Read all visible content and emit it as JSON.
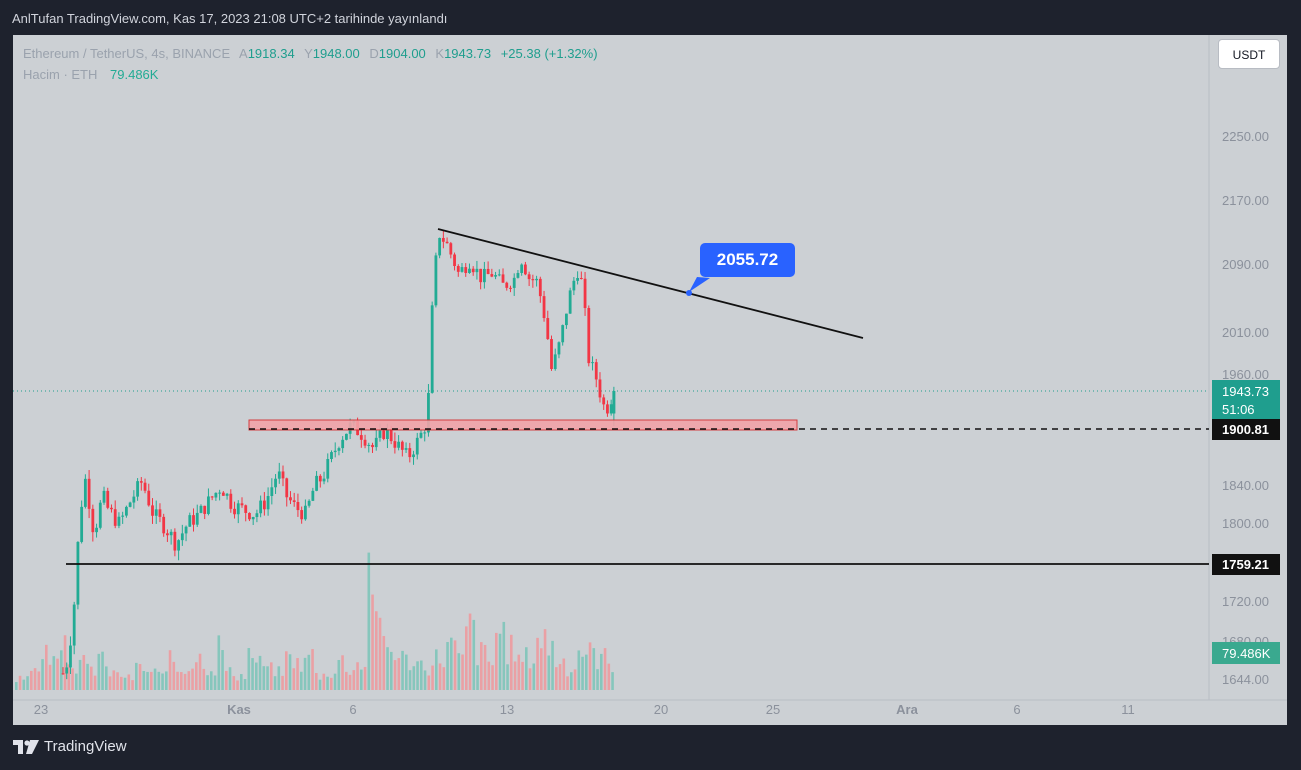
{
  "header": {
    "published_by": "AnlTufan TradingView.com, Kas 17, 2023 21:08 UTC+2 tarihinde yayınlandı"
  },
  "legend": {
    "symbol": "Ethereum / TetherUS, 4s, BINANCE",
    "open_label": "A",
    "open": "1918.34",
    "high_label": "Y",
    "high": "1948.00",
    "low_label": "D",
    "low": "1904.00",
    "close_label": "K",
    "close": "1943.73",
    "change": "+25.38 (+1.32%)",
    "volume_label": "Hacim · ETH",
    "volume": "79.486K"
  },
  "currency_button": "USDT",
  "annotations": {
    "callout": "2055.72",
    "resistance_level": "1900.81",
    "support_level": "1759.21"
  },
  "price_scale": {
    "last_price": "1943.73",
    "countdown": "51:06",
    "volume_badge": "79.486K",
    "ticks": [
      "2250.00",
      "2170.00",
      "2090.00",
      "2010.00",
      "1960.00",
      "1840.00",
      "1800.00",
      "1720.00",
      "1680.00",
      "1644.00"
    ]
  },
  "time_axis": {
    "ticks": [
      "23",
      "Kas",
      "6",
      "13",
      "20",
      "25",
      "Ara",
      "6",
      "11"
    ]
  },
  "footer": {
    "brand": "TradingView"
  },
  "colors": {
    "up": "#22ab94",
    "down": "#f23645",
    "background": "#ccd0d4",
    "accent": "#2962ff"
  },
  "chart_data": {
    "type": "candlestick",
    "title": "Ethereum / TetherUS, 4s, BINANCE",
    "x": [
      "23",
      "Kas",
      "6",
      "13",
      "20",
      "25",
      "Ara",
      "6",
      "11"
    ],
    "y_ticks": [
      2250,
      2170,
      2090,
      2010,
      1960,
      1840,
      1800,
      1720,
      1680,
      1644
    ],
    "ylim": [
      1630,
      2290
    ],
    "last": {
      "open": 1918.34,
      "high": 1948.0,
      "low": 1904.0,
      "close": 1943.73,
      "volume_k": 79.486
    },
    "price_path": [
      [
        0,
        1650,
        "start"
      ],
      [
        0.1,
        1665,
        ""
      ],
      [
        0.2,
        1720,
        ""
      ],
      [
        0.3,
        1812,
        ""
      ],
      [
        0.4,
        1848,
        ""
      ],
      [
        0.55,
        1790,
        ""
      ],
      [
        0.7,
        1830,
        ""
      ],
      [
        0.8,
        1815,
        ""
      ],
      [
        1.0,
        1800,
        ""
      ],
      [
        1.2,
        1825,
        ""
      ],
      [
        1.4,
        1845,
        ""
      ],
      [
        1.6,
        1810,
        ""
      ],
      [
        1.8,
        1798,
        ""
      ],
      [
        2.0,
        1780,
        ""
      ],
      [
        2.2,
        1800,
        ""
      ],
      [
        2.4,
        1810,
        ""
      ],
      [
        2.6,
        1825,
        ""
      ],
      [
        2.8,
        1840,
        ""
      ],
      [
        3.0,
        1820,
        ""
      ],
      [
        3.2,
        1815,
        ""
      ],
      [
        3.4,
        1810,
        ""
      ],
      [
        3.6,
        1825,
        ""
      ],
      [
        3.8,
        1855,
        ""
      ],
      [
        3.95,
        1830,
        ""
      ],
      [
        4.1,
        1818,
        ""
      ],
      [
        4.3,
        1810,
        ""
      ],
      [
        4.45,
        1840,
        ""
      ],
      [
        4.6,
        1850,
        ""
      ],
      [
        4.75,
        1870,
        ""
      ],
      [
        4.9,
        1890,
        ""
      ],
      [
        5.1,
        1905,
        ""
      ],
      [
        5.3,
        1895,
        ""
      ],
      [
        5.5,
        1880,
        ""
      ],
      [
        5.7,
        1900,
        ""
      ],
      [
        5.9,
        1885,
        ""
      ],
      [
        6.1,
        1870,
        ""
      ],
      [
        6.3,
        1890,
        ""
      ],
      [
        6.45,
        1910,
        ""
      ],
      [
        6.55,
        2060,
        ""
      ],
      [
        6.65,
        2130,
        ""
      ],
      [
        6.8,
        2115,
        ""
      ],
      [
        7.0,
        2080,
        ""
      ],
      [
        7.2,
        2095,
        ""
      ],
      [
        7.4,
        2075,
        ""
      ],
      [
        7.6,
        2080,
        ""
      ],
      [
        7.8,
        2065,
        ""
      ],
      [
        8.0,
        2075,
        ""
      ],
      [
        8.1,
        2100,
        ""
      ],
      [
        8.25,
        2075,
        ""
      ],
      [
        8.4,
        2070,
        ""
      ],
      [
        8.55,
        2020,
        ""
      ],
      [
        8.65,
        1965,
        ""
      ],
      [
        8.8,
        2000,
        ""
      ],
      [
        8.95,
        2050,
        ""
      ],
      [
        9.1,
        2085,
        ""
      ],
      [
        9.2,
        2065,
        ""
      ],
      [
        9.3,
        1980,
        ""
      ],
      [
        9.45,
        1955,
        ""
      ],
      [
        9.6,
        1920,
        ""
      ],
      [
        9.75,
        1943.73,
        "last"
      ]
    ],
    "volume_profile": [
      9,
      12,
      18,
      28,
      35,
      22,
      18,
      14,
      25,
      12,
      10,
      8,
      15,
      12,
      10,
      20,
      14,
      18,
      22,
      15,
      30,
      12,
      10,
      25,
      18,
      14,
      12,
      22,
      18,
      25,
      10,
      12,
      20,
      15,
      18,
      85,
      40,
      28,
      22,
      20,
      18,
      16,
      22,
      30,
      20,
      42,
      25,
      18,
      40,
      28,
      20,
      22,
      35,
      30,
      20,
      15,
      28,
      25,
      22,
      18
    ],
    "lines": {
      "trendline_from": [
        "10",
        2140
      ],
      "trendline_to": [
        "28",
        2008
      ],
      "support": 1759.21,
      "resistance_zone": [
        1900.81,
        1915
      ]
    }
  }
}
